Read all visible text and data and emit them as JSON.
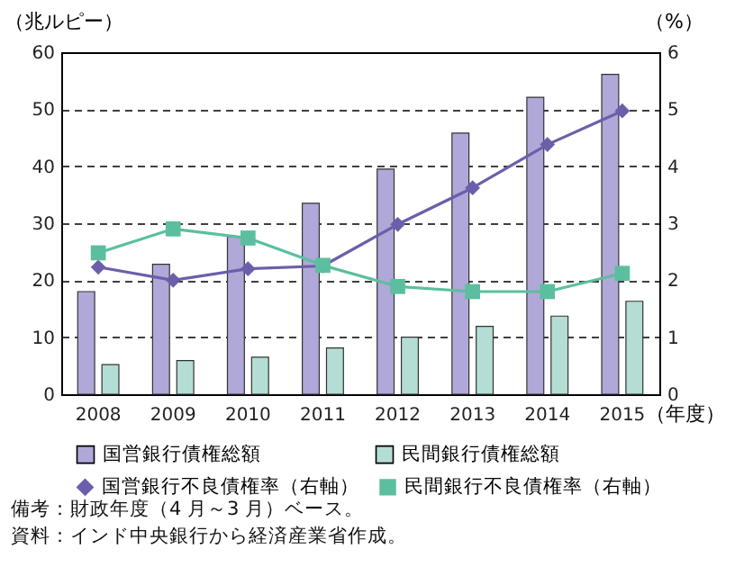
{
  "chart_data": {
    "type": "bar",
    "categories": [
      "2008",
      "2009",
      "2010",
      "2011",
      "2012",
      "2013",
      "2014",
      "2015"
    ],
    "ylabel": "（兆ルピー）",
    "y2label": "（%）",
    "xlabel": "（年度）",
    "ylim": [
      0,
      60
    ],
    "yticks": [
      0,
      10,
      20,
      30,
      40,
      50,
      60
    ],
    "y2lim": [
      0,
      6
    ],
    "y2ticks": [
      0,
      1,
      2,
      3,
      4,
      5,
      6
    ],
    "grid": "y",
    "legend": "bottom",
    "series": [
      {
        "name": "国営銀行債権総額",
        "color": "#b0a8d8",
        "values": [
          18.0,
          22.8,
          27.7,
          33.5,
          39.5,
          45.8,
          52.1,
          56.1
        ]
      },
      {
        "name": "民間銀行債権総額",
        "color": "#b3ddd5",
        "values": [
          5.2,
          5.9,
          6.5,
          8.1,
          10.0,
          11.9,
          13.7,
          16.3
        ]
      },
      {
        "name": "国営銀行不良債権率（右軸）",
        "type": "line",
        "axis": "y2",
        "marker": "diamond",
        "color": "#6b5fab",
        "values": [
          2.23,
          2.0,
          2.2,
          2.25,
          2.98,
          3.62,
          4.38,
          4.97
        ]
      },
      {
        "name": "民間銀行不良債権率（右軸）",
        "type": "line",
        "axis": "y2",
        "marker": "square",
        "color": "#5bbf9f",
        "values": [
          2.48,
          2.9,
          2.74,
          2.26,
          1.89,
          1.8,
          1.8,
          2.12
        ]
      }
    ],
    "annotations": [
      "備考：財政年度（4 月～3 月）ベース。",
      "資料：インド中央銀行から経済産業省作成。"
    ]
  }
}
